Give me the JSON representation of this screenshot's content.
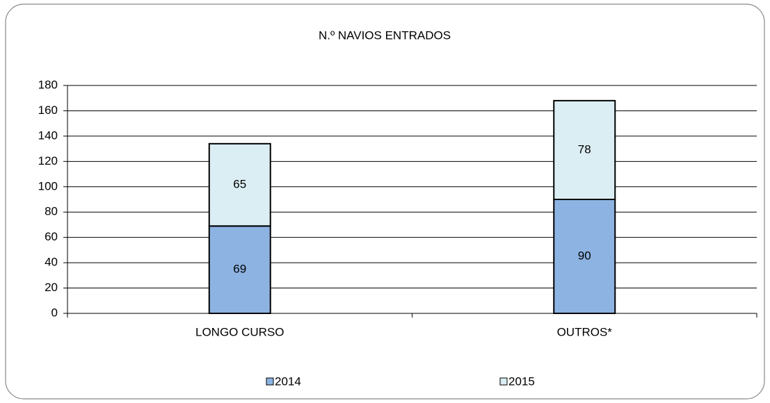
{
  "chart_data": {
    "type": "stacked_bar",
    "title": "N.º NAVIOS ENTRADOS",
    "categories": [
      "LONGO CURSO",
      "OUTROS*"
    ],
    "series": [
      {
        "name": "2014",
        "color": "#8db3e2",
        "values": [
          69,
          90
        ]
      },
      {
        "name": "2015",
        "color": "#dbeef4",
        "values": [
          65,
          78
        ]
      }
    ],
    "ylim": [
      0,
      180
    ],
    "yticks": [
      0,
      20,
      40,
      60,
      80,
      100,
      120,
      140,
      160,
      180
    ],
    "grid": true,
    "legend": "bottom"
  }
}
